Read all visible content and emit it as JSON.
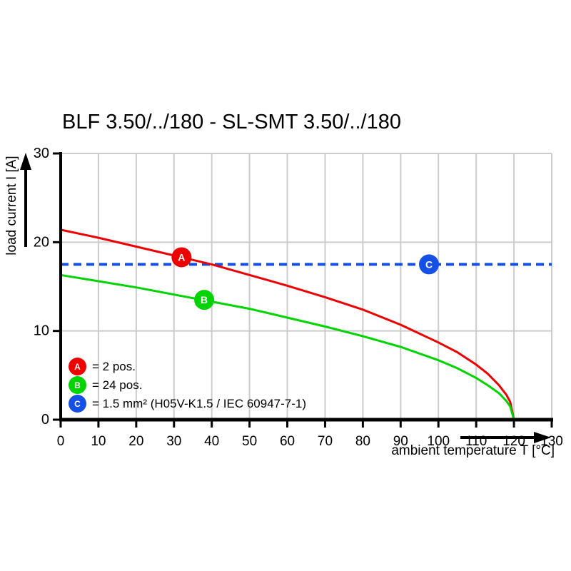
{
  "title": "BLF 3.50/../180 - SL-SMT 3.50/../180",
  "colors": {
    "series_a_red": "#ee0000",
    "series_b_green": "#00d400",
    "series_c_blue": "#1550e6",
    "grid": "#cccccc",
    "axis": "#000000",
    "background": "#ffffff"
  },
  "legend": {
    "items": [
      {
        "letter": "A",
        "color": "#ee0000",
        "text": "= 2 pos."
      },
      {
        "letter": "B",
        "color": "#00d400",
        "text": "= 24 pos."
      },
      {
        "letter": "C",
        "color": "#1550e6",
        "text": "= 1.5 mm² (H05V-K1.5 / IEC 60947-7-1)"
      }
    ]
  },
  "chart_data": {
    "type": "line",
    "title": "BLF 3.50/../180 - SL-SMT 3.50/../180",
    "xlabel": "ambient temperature T [°C]",
    "ylabel": "load current I [A]",
    "xlim": [
      0,
      130
    ],
    "ylim": [
      0,
      30
    ],
    "x_ticks": [
      0,
      10,
      20,
      30,
      40,
      50,
      60,
      70,
      80,
      90,
      100,
      110,
      120,
      130
    ],
    "y_ticks": [
      0,
      10,
      20,
      30
    ],
    "grid": true,
    "legend_position": "lower-left-inside",
    "series": [
      {
        "name": "A",
        "label": "2 pos.",
        "color": "#ee0000",
        "style": "solid",
        "points": [
          [
            0,
            21.4
          ],
          [
            10,
            20.5
          ],
          [
            20,
            19.5
          ],
          [
            30,
            18.5
          ],
          [
            40,
            17.5
          ],
          [
            50,
            16.3
          ],
          [
            60,
            15.1
          ],
          [
            70,
            13.8
          ],
          [
            80,
            12.4
          ],
          [
            90,
            10.7
          ],
          [
            100,
            8.7
          ],
          [
            105,
            7.6
          ],
          [
            110,
            6.2
          ],
          [
            113,
            5.2
          ],
          [
            116,
            3.9
          ],
          [
            118,
            2.8
          ],
          [
            119,
            2.0
          ],
          [
            120,
            0
          ]
        ]
      },
      {
        "name": "B",
        "label": "24 pos.",
        "color": "#00d400",
        "style": "solid",
        "points": [
          [
            0,
            16.3
          ],
          [
            10,
            15.6
          ],
          [
            20,
            14.9
          ],
          [
            30,
            14.1
          ],
          [
            40,
            13.3
          ],
          [
            50,
            12.5
          ],
          [
            60,
            11.5
          ],
          [
            70,
            10.5
          ],
          [
            80,
            9.4
          ],
          [
            90,
            8.2
          ],
          [
            100,
            6.7
          ],
          [
            105,
            5.8
          ],
          [
            110,
            4.7
          ],
          [
            113,
            3.9
          ],
          [
            116,
            3.0
          ],
          [
            118,
            2.1
          ],
          [
            119,
            1.5
          ],
          [
            120,
            0
          ]
        ]
      },
      {
        "name": "C",
        "label": "1.5 mm² (H05V-K1.5 / IEC 60947-7-1)",
        "color": "#1550e6",
        "style": "dashed",
        "points": [
          [
            0,
            17.5
          ],
          [
            130,
            17.5
          ]
        ]
      }
    ],
    "markers": [
      {
        "letter": "A",
        "x": 32,
        "y": 18.3,
        "color": "#ee0000"
      },
      {
        "letter": "B",
        "x": 38,
        "y": 13.5,
        "color": "#00d400"
      },
      {
        "letter": "C",
        "x": 97.5,
        "y": 17.5,
        "color": "#1550e6"
      }
    ]
  }
}
